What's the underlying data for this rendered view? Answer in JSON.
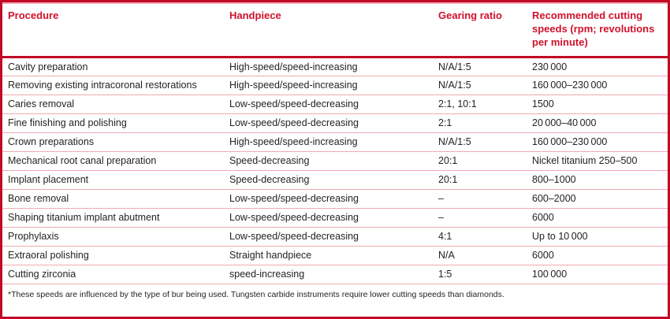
{
  "table": {
    "columns": [
      {
        "key": "procedure",
        "label": "Procedure"
      },
      {
        "key": "handpiece",
        "label": "Handpiece"
      },
      {
        "key": "gearing-ratio",
        "label": "Gearing ratio"
      },
      {
        "key": "cutting-speed",
        "label": "Recommended cutting speeds (rpm; revolutions per minute)"
      }
    ],
    "rows": [
      [
        "Cavity preparation",
        "High-speed/speed-increasing",
        "N/A/1:5",
        "230 000"
      ],
      [
        "Removing existing intracoronal restorations",
        "High-speed/speed-increasing",
        "N/A/1:5",
        "160 000–230 000"
      ],
      [
        "Caries removal",
        "Low-speed/speed-decreasing",
        "2:1, 10:1",
        "1500"
      ],
      [
        "Fine finishing and polishing",
        "Low-speed/speed-decreasing",
        "2:1",
        "20 000–40 000"
      ],
      [
        "Crown preparations",
        "High-speed/speed-increasing",
        "N/A/1:5",
        "160 000–230 000"
      ],
      [
        "Mechanical root canal preparation",
        "Speed-decreasing",
        "20:1",
        "Nickel titanium 250–500"
      ],
      [
        "Implant placement",
        "Speed-decreasing",
        "20:1",
        "800–1000"
      ],
      [
        "Bone removal",
        "Low-speed/speed-decreasing",
        "–",
        "600–2000"
      ],
      [
        "Shaping titanium implant abutment",
        "Low-speed/speed-decreasing",
        "–",
        "6000"
      ],
      [
        "Prophylaxis",
        "Low-speed/speed-decreasing",
        "4:1",
        "Up to 10 000"
      ],
      [
        "Extraoral polishing",
        "Straight handpiece",
        "N/A",
        "6000"
      ],
      [
        "Cutting zirconia",
        "speed-increasing",
        "1:5",
        "100 000"
      ]
    ],
    "footnote": "*These speeds are influenced by the type of bur being used. Tungsten carbide instruments require lower cutting speeds than diamonds."
  },
  "colors": {
    "frame_border": "#c00a26",
    "header_text": "#d0112b",
    "row_divider": "#f2a9b2",
    "body_text": "#262223"
  }
}
